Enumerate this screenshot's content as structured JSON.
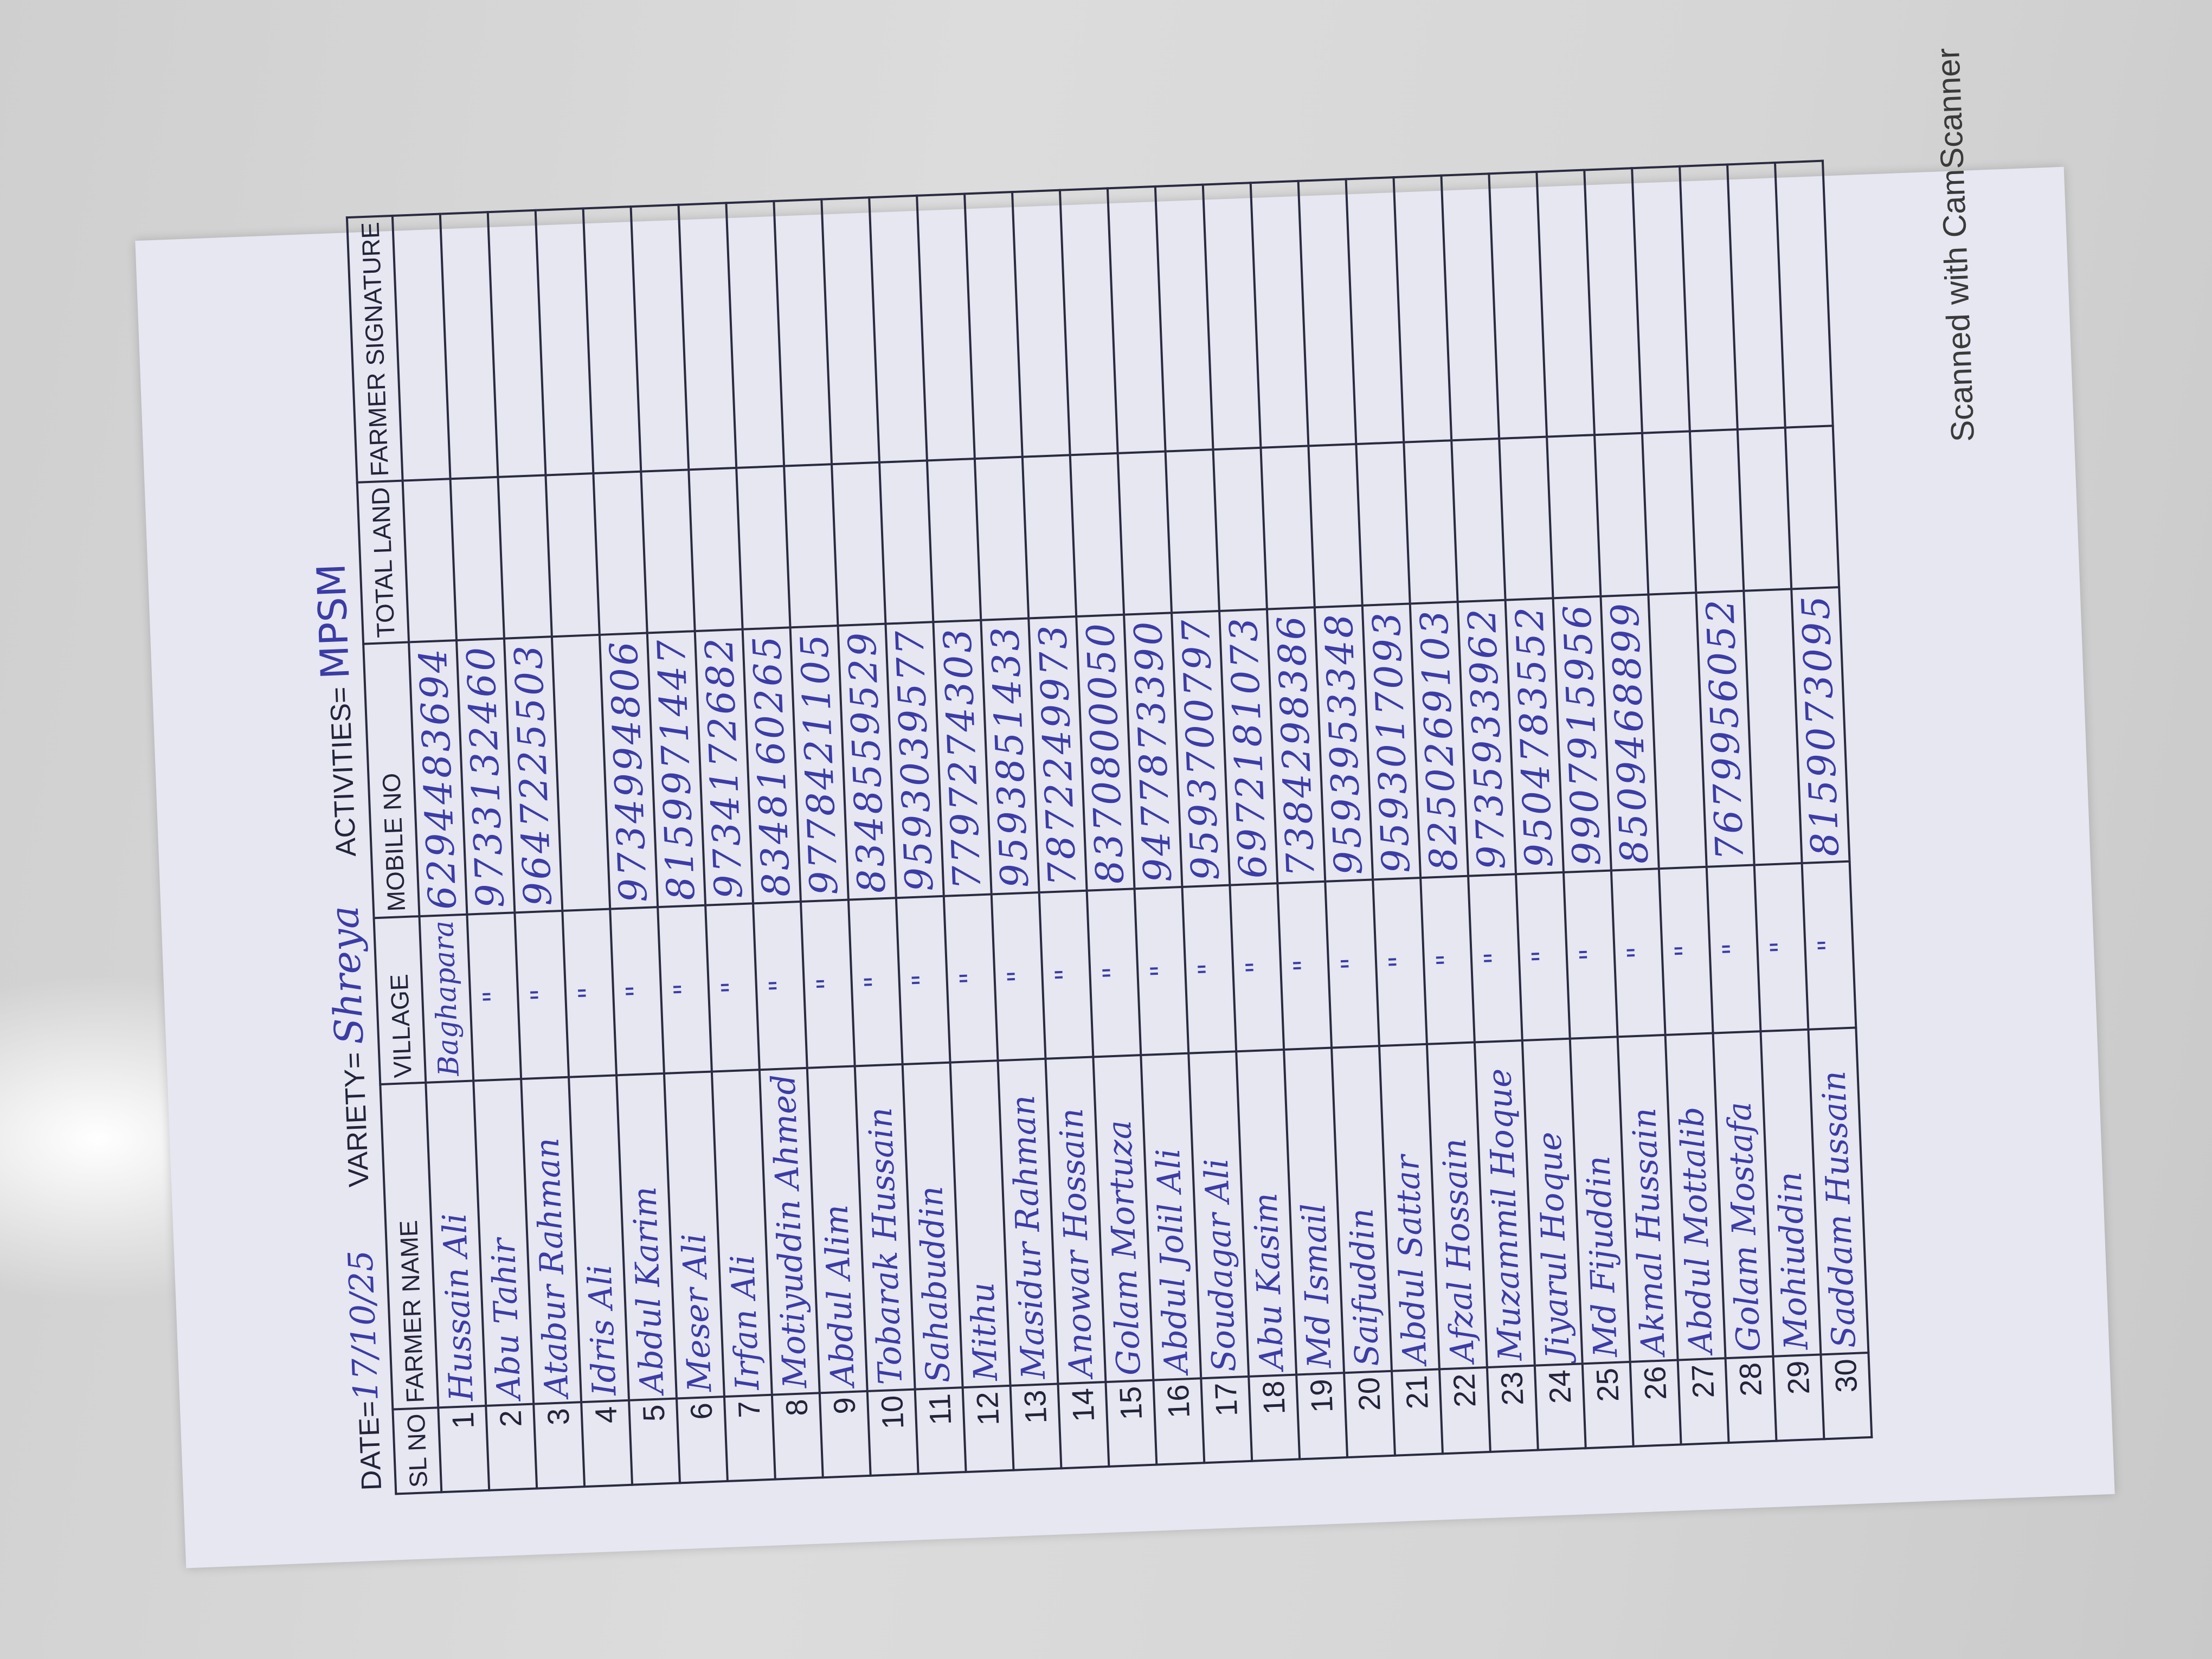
{
  "header": {
    "date_label": "DATE=",
    "date_value": "17/10/25",
    "variety_label": "VARIETY=",
    "variety_value": "Shreya",
    "activities_label": "ACTIVITIES=",
    "activities_value": "MPSM"
  },
  "table": {
    "columns": [
      "SL NO",
      "FARMER NAME",
      "VILLAGE",
      "MOBILE NO",
      "TOTAL LAND",
      "FARMER SIGNATURE"
    ],
    "rows": [
      {
        "sl": "1",
        "name": "Hussain Ali",
        "village": "Baghapara",
        "mobile": "6294483694"
      },
      {
        "sl": "2",
        "name": "Abu Tahir",
        "village": "\"",
        "mobile": "9733132460"
      },
      {
        "sl": "3",
        "name": "Atabur Rahman",
        "village": "\"",
        "mobile": "9647225503"
      },
      {
        "sl": "4",
        "name": "Idris Ali",
        "village": "\"",
        "mobile": ""
      },
      {
        "sl": "5",
        "name": "Abdul Karim",
        "village": "\"",
        "mobile": "9734994806"
      },
      {
        "sl": "6",
        "name": "Meser Ali",
        "village": "\"",
        "mobile": "8159971447"
      },
      {
        "sl": "7",
        "name": "Irfan Ali",
        "village": "\"",
        "mobile": "9734172682"
      },
      {
        "sl": "8",
        "name": "Motiyuddin Ahmed",
        "village": "\"",
        "mobile": "8348160265"
      },
      {
        "sl": "9",
        "name": "Abdul Alim",
        "village": "\"",
        "mobile": "9778421105"
      },
      {
        "sl": "10",
        "name": "Tobarak Hussain",
        "village": "\"",
        "mobile": "8348559529"
      },
      {
        "sl": "11",
        "name": "Sahabuddin",
        "village": "\"",
        "mobile": "9593039577"
      },
      {
        "sl": "12",
        "name": "Mithu",
        "village": "\"",
        "mobile": "7797274303"
      },
      {
        "sl": "13",
        "name": "Masidur Rahman",
        "village": "\"",
        "mobile": "9593851433"
      },
      {
        "sl": "14",
        "name": "Anowar Hossain",
        "village": "\"",
        "mobile": "7872249973"
      },
      {
        "sl": "15",
        "name": "Golam Mortuza",
        "village": "\"",
        "mobile": "8370800050"
      },
      {
        "sl": "16",
        "name": "Abdul Jolil Ali",
        "village": "\"",
        "mobile": "9477873390"
      },
      {
        "sl": "17",
        "name": "Soudagar Ali",
        "village": "\"",
        "mobile": "9593700797"
      },
      {
        "sl": "18",
        "name": "Abu Kasim",
        "village": "\"",
        "mobile": "6972181073"
      },
      {
        "sl": "19",
        "name": "Md Ismail",
        "village": "\"",
        "mobile": "7384298386"
      },
      {
        "sl": "20",
        "name": "Saifuddin",
        "village": "\"",
        "mobile": "9593953348"
      },
      {
        "sl": "21",
        "name": "Abdul Sattar",
        "village": "\"",
        "mobile": "9593017093"
      },
      {
        "sl": "22",
        "name": "Afzal Hossain",
        "village": "\"",
        "mobile": "8250269103"
      },
      {
        "sl": "23",
        "name": "Muzammil Hoque",
        "village": "\"",
        "mobile": "9735933962"
      },
      {
        "sl": "24",
        "name": "Jiyarul Hoque",
        "village": "\"",
        "mobile": "9504783552"
      },
      {
        "sl": "25",
        "name": "Md Fijuddin",
        "village": "\"",
        "mobile": "9907915956"
      },
      {
        "sl": "26",
        "name": "Akmal Hussain",
        "village": "\"",
        "mobile": "8509468899"
      },
      {
        "sl": "27",
        "name": "Abdul Mottalib",
        "village": "\"",
        "mobile": ""
      },
      {
        "sl": "28",
        "name": "Golam Mostafa",
        "village": "\"",
        "mobile": "7679956052"
      },
      {
        "sl": "29",
        "name": "Mohiuddin",
        "village": "\"",
        "mobile": ""
      },
      {
        "sl": "30",
        "name": "Saddam Hussain",
        "village": "\"",
        "mobile": "8159073095"
      }
    ]
  },
  "footer": {
    "scanner_text": "Scanned with CamScanner"
  },
  "colors": {
    "ink": "#3b3ca6",
    "paper": "#e6e7f1",
    "print": "#23243a"
  }
}
